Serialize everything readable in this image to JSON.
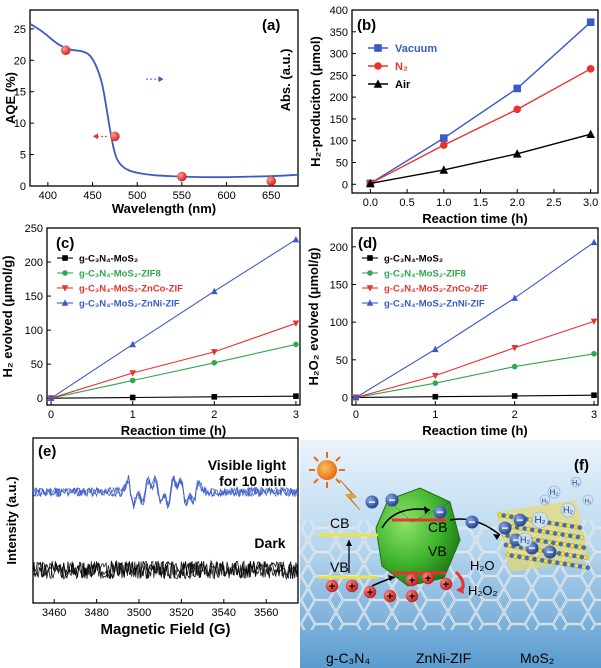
{
  "chart_data": [
    {
      "panel": "(a)",
      "type": "line",
      "xlabel": "Wavelength (nm)",
      "ylabel": "AQE (%)",
      "ylabel_right": "Abs. (a.u.)",
      "xlim": [
        380,
        680
      ],
      "ylim": [
        0,
        28
      ],
      "xticks": [
        400,
        450,
        500,
        550,
        600,
        650
      ],
      "yticks": [
        0,
        5,
        10,
        15,
        20,
        25
      ],
      "absorbance": {
        "x": [
          380,
          395,
          410,
          425,
          440,
          450,
          460,
          465,
          470,
          475,
          480,
          490,
          510,
          530,
          550,
          570,
          600,
          630,
          660,
          680
        ],
        "y": [
          25.8,
          24.5,
          22.6,
          21.6,
          21.5,
          20.5,
          17.0,
          13.0,
          8.5,
          5.0,
          3.5,
          2.4,
          1.8,
          1.6,
          1.5,
          1.4,
          1.4,
          1.5,
          1.6,
          1.8
        ]
      },
      "aqe_points": {
        "x": [
          420,
          475,
          550,
          650
        ],
        "y": [
          21.6,
          7.9,
          1.5,
          0.8
        ]
      }
    },
    {
      "panel": "(b)",
      "type": "line",
      "xlabel": "Reaction time (h)",
      "ylabel": "H₂-produciton (μmol)",
      "xlim": [
        -0.25,
        3.1
      ],
      "ylim": [
        -20,
        400
      ],
      "xticks": [
        "0.0",
        "0.5",
        "1.0",
        "1.5",
        "2.0",
        "2.5",
        "3.0"
      ],
      "yticks": [
        0,
        50,
        100,
        150,
        200,
        250,
        300,
        350,
        400
      ],
      "x": [
        0,
        1,
        2,
        3
      ],
      "legend": "top-left",
      "series": [
        {
          "name": "Vacuum",
          "color": "#3a5bc7",
          "marker": "square",
          "values": [
            2,
            106,
            220,
            372
          ]
        },
        {
          "name": "N₂",
          "color": "#e8332e",
          "marker": "circle",
          "values": [
            2,
            90,
            172,
            265
          ]
        },
        {
          "name": "Air",
          "color": "#000000",
          "marker": "triangle",
          "values": [
            2,
            33,
            70,
            115
          ]
        }
      ]
    },
    {
      "panel": "(c)",
      "type": "line",
      "xlabel": "Reaction time (h)",
      "ylabel": "H₂ evolved (μmol/g)",
      "xlim": [
        -0.05,
        3.05
      ],
      "ylim": [
        -10,
        250
      ],
      "xticks": [
        "0",
        "1",
        "2",
        "3"
      ],
      "yticks": [
        0,
        50,
        100,
        150,
        200,
        250
      ],
      "x": [
        0,
        1,
        2,
        3
      ],
      "legend": "top-left",
      "series": [
        {
          "name": "g-C₃N₄-MoS₂",
          "color": "#000000",
          "marker": "square",
          "values": [
            0,
            1,
            2,
            3
          ]
        },
        {
          "name": "g-C₃N₄-MoS₂-ZIF8",
          "color": "#2fa84f",
          "marker": "circle",
          "values": [
            0,
            26,
            52,
            79
          ]
        },
        {
          "name": "g-C₃N₄-MoS₂-ZnCo-ZIF",
          "color": "#e8332e",
          "marker": "triangle-down",
          "values": [
            0,
            37,
            68,
            110
          ]
        },
        {
          "name": "g-C₃N₄-MoS₂-ZnNi-ZIF",
          "color": "#3a5bc7",
          "marker": "triangle",
          "values": [
            0,
            79,
            157,
            233
          ]
        }
      ]
    },
    {
      "panel": "(d)",
      "type": "line",
      "xlabel": "Reaction time (h)",
      "ylabel": "H₂O₂ evolved (μmol/g)",
      "xlim": [
        -0.05,
        3.05
      ],
      "ylim": [
        -10,
        225
      ],
      "xticks": [
        "0",
        "1",
        "2",
        "3"
      ],
      "yticks": [
        0,
        50,
        100,
        150,
        200
      ],
      "x": [
        0,
        1,
        2,
        3
      ],
      "legend": "top-left",
      "series": [
        {
          "name": "g-C₃N₄-MoS₂",
          "color": "#000000",
          "marker": "square",
          "values": [
            0,
            1,
            2,
            3
          ]
        },
        {
          "name": "g-C₃N₄-MoS₂-ZIF8",
          "color": "#2fa84f",
          "marker": "circle",
          "values": [
            0,
            19,
            41,
            58
          ]
        },
        {
          "name": "g-C₃N₄-MoS₂-ZnCo-ZIF",
          "color": "#e8332e",
          "marker": "triangle-down",
          "values": [
            0,
            29,
            66,
            101
          ]
        },
        {
          "name": "g-C₃N₄-MoS₂-ZnNi-ZIF",
          "color": "#3a5bc7",
          "marker": "triangle",
          "values": [
            0,
            64,
            132,
            206
          ]
        }
      ]
    },
    {
      "panel": "(e)",
      "type": "line",
      "xlabel": "Magnetic Field (G)",
      "ylabel": "Intensity (a.u.)",
      "xlim": [
        3450,
        3575
      ],
      "xticks": [
        3460,
        3480,
        3500,
        3520,
        3540,
        3560
      ],
      "series": [
        {
          "name": "Visible light for 10 min",
          "color": "#3a5bc7"
        },
        {
          "name": "Dark",
          "color": "#000000"
        }
      ]
    }
  ],
  "scheme": {
    "panel": "(f)",
    "labels": {
      "cb_left": "CB",
      "vb_left": "VB",
      "cb_center": "CB",
      "vb_center": "VB",
      "h2o": "H₂O",
      "h2o2": "H₂O₂",
      "h2": "H₂",
      "bottom_left": "g-C₃N₄",
      "bottom_center": "ZnNi-ZIF",
      "bottom_right": "MoS₂"
    },
    "electron_symbol": "−",
    "hole_symbol": "+"
  }
}
